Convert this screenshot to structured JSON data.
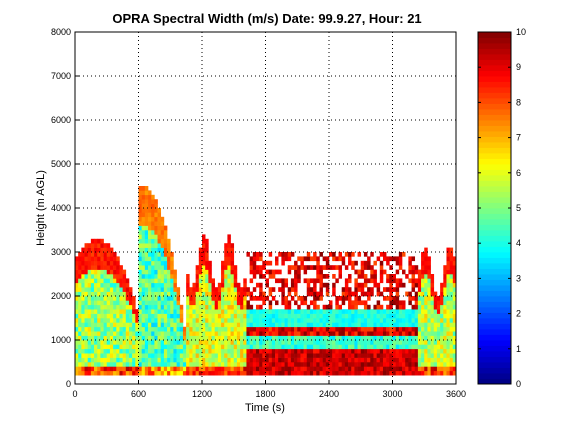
{
  "chart_data": {
    "type": "heatmap",
    "title": "OPRA Spectral Width (m/s)  Date: 99.9.27, Hour: 21",
    "xlabel": "Time (s)",
    "ylabel": "Height (m AGL)",
    "xlim": [
      0,
      3600
    ],
    "ylim": [
      0,
      8000
    ],
    "x_ticks": [
      "0",
      "600",
      "1200",
      "1800",
      "2400",
      "3000",
      "3600"
    ],
    "y_ticks": [
      "0",
      "1000",
      "2000",
      "3000",
      "4000",
      "5000",
      "6000",
      "7000",
      "8000"
    ],
    "grid": true,
    "colorbar": {
      "colormap": "jet",
      "range": [
        0,
        10
      ],
      "ticks": [
        "0",
        "1",
        "2",
        "3",
        "4",
        "5",
        "6",
        "7",
        "8",
        "9",
        "10"
      ]
    },
    "regions": [
      {
        "x": [
          0,
          600
        ],
        "height_top": 3300,
        "peak_x": 210,
        "value_range": [
          3,
          9
        ]
      },
      {
        "x": [
          550,
          1050
        ],
        "height_top": 4500,
        "peak_x": 650,
        "value_range": [
          2.5,
          8
        ]
      },
      {
        "x": [
          1050,
          1620
        ],
        "height_top": 3400,
        "value_range": [
          4,
          9
        ]
      },
      {
        "x": [
          1620,
          3250
        ],
        "bands": [
          {
            "height": [
              200,
              800
            ],
            "value_range": [
              8.5,
              10
            ]
          },
          {
            "height": [
              800,
              1100
            ],
            "value_range": [
              3.5,
              5
            ]
          },
          {
            "height": [
              1100,
              1350
            ],
            "value_range": [
              8,
              10
            ]
          },
          {
            "height": [
              1350,
              1700
            ],
            "value_range": [
              3.5,
              4.5
            ]
          },
          {
            "height": [
              1700,
              3000
            ],
            "value_range": [
              8,
              10
            ],
            "sparse": true
          }
        ]
      },
      {
        "x": [
          3250,
          3600
        ],
        "height_top": 3150,
        "value_range": [
          3.5,
          9
        ]
      }
    ]
  }
}
